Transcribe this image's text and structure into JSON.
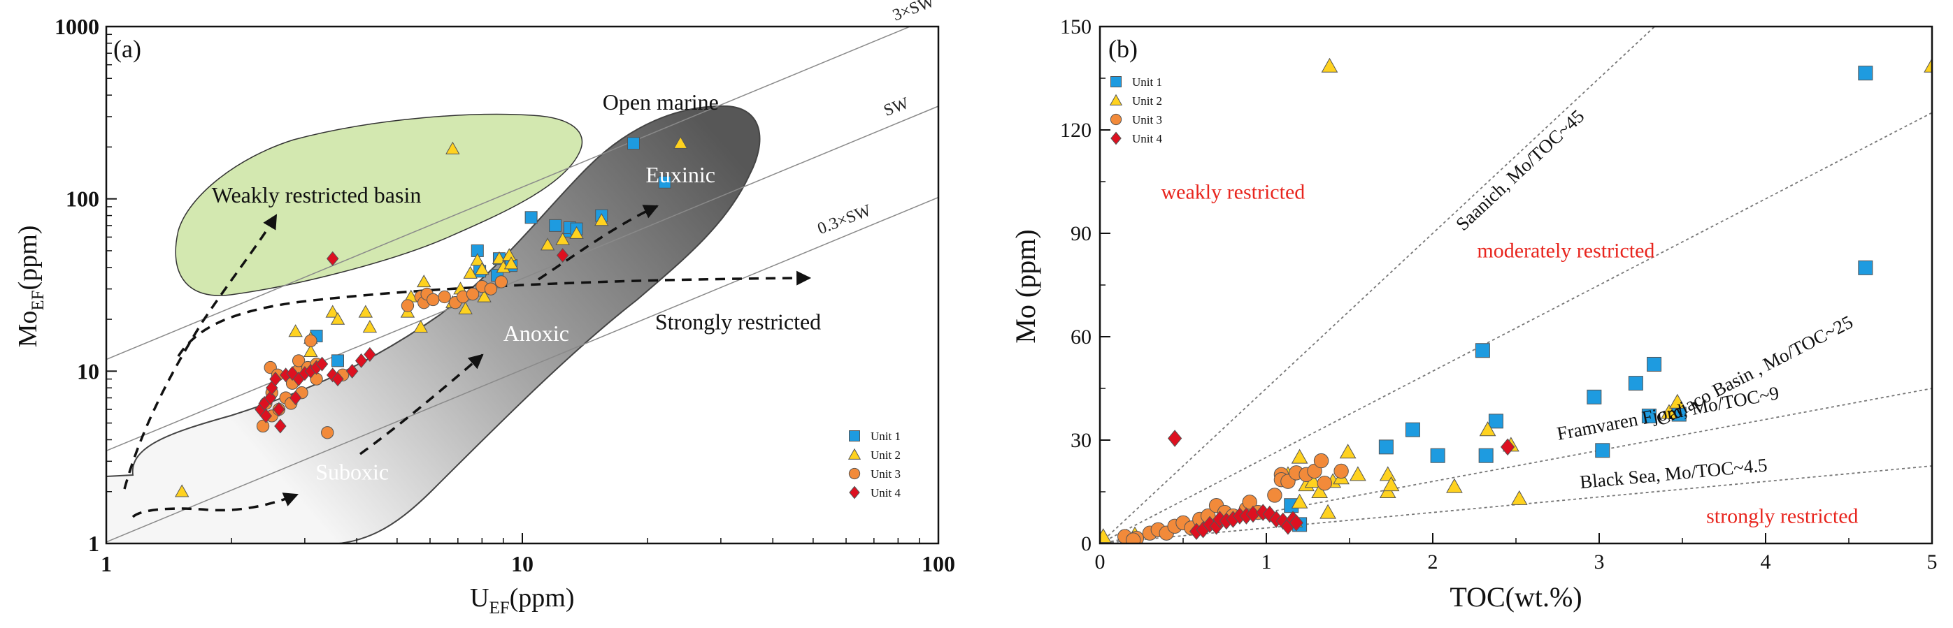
{
  "colors": {
    "unit1": "#1e9be0",
    "unit2": "#ffd21f",
    "unit3": "#f28a3a",
    "unit4": "#dd1020",
    "red_text": "#e8251e",
    "weak_basin_fill": "#d3e8b0",
    "anoxic_dark": "#5a5a5a",
    "anoxic_light": "#f2f2f2"
  },
  "chart_data": [
    {
      "id": "a",
      "type": "scatter",
      "panel_label": "(a)",
      "x_scale": "log",
      "y_scale": "log",
      "xlim": [
        1,
        100
      ],
      "ylim": [
        1,
        1000
      ],
      "xlabel_main": "U",
      "xlabel_sub": "EF",
      "xlabel_unit": "(ppm)",
      "ylabel_main": "Mo",
      "ylabel_sub": "EF",
      "ylabel_unit": "(ppm)",
      "xticks": [
        {
          "value": 1,
          "label": "1"
        },
        {
          "value": 10,
          "label": "10"
        },
        {
          "value": 100,
          "label": "100"
        }
      ],
      "yticks": [
        {
          "value": 1,
          "label": "1"
        },
        {
          "value": 10,
          "label": "10"
        },
        {
          "value": 100,
          "label": "100"
        },
        {
          "value": 1000,
          "label": "1000"
        }
      ],
      "reference_lines": [
        {
          "label": "3×SW",
          "factor": 11.7
        },
        {
          "label": "SW",
          "factor": 3.45
        },
        {
          "label": "0.3×SW",
          "factor": 1.02
        }
      ],
      "region_labels": [
        {
          "text": "Open marine",
          "x": 21.5,
          "y": 330,
          "color": "#111111"
        },
        {
          "text": "Euxinic",
          "x": 24,
          "y": 125,
          "color": "#ffffff"
        },
        {
          "text": "Weakly restricted basin",
          "x": 3.2,
          "y": 95,
          "color": "#111111"
        },
        {
          "text": "Strongly restricted",
          "x": 33,
          "y": 17.5,
          "color": "#111111"
        },
        {
          "text": "Anoxic",
          "x": 10.8,
          "y": 15,
          "color": "#ffffff"
        },
        {
          "text": "Suboxic",
          "x": 3.9,
          "y": 2.35,
          "color": "#ffffff"
        }
      ],
      "legend_position": "lower-right",
      "series": [
        {
          "name": "Unit 1",
          "marker": "square",
          "points": [
            [
              3.6,
              11.5
            ],
            [
              3.2,
              16
            ],
            [
              7.8,
              50
            ],
            [
              7.9,
              38
            ],
            [
              8.7,
              36
            ],
            [
              8.8,
              45
            ],
            [
              9.4,
              41
            ],
            [
              10.5,
              78
            ],
            [
              12,
              70
            ],
            [
              13,
              65
            ],
            [
              13,
              68
            ],
            [
              13.5,
              67
            ],
            [
              15.5,
              80
            ],
            [
              18.5,
              210
            ],
            [
              22,
              125
            ]
          ]
        },
        {
          "name": "Unit 2",
          "marker": "triangle",
          "points": [
            [
              1.52,
              2
            ],
            [
              2.85,
              17
            ],
            [
              3.1,
              13
            ],
            [
              3.1,
              15.5
            ],
            [
              3.5,
              22
            ],
            [
              3.6,
              20
            ],
            [
              4.2,
              22
            ],
            [
              4.3,
              18
            ],
            [
              5.3,
              22
            ],
            [
              5.4,
              27
            ],
            [
              5.7,
              18
            ],
            [
              5.8,
              33
            ],
            [
              6.8,
              25
            ],
            [
              7.1,
              30
            ],
            [
              7.3,
              23
            ],
            [
              7.5,
              37
            ],
            [
              7.8,
              44
            ],
            [
              8,
              39
            ],
            [
              8.1,
              27
            ],
            [
              8.8,
              45
            ],
            [
              9,
              40
            ],
            [
              9.3,
              47
            ],
            [
              9.4,
              42
            ],
            [
              11.5,
              54
            ],
            [
              12.5,
              58
            ],
            [
              13.5,
              63
            ],
            [
              15.5,
              75
            ],
            [
              24,
              210
            ],
            [
              6.8,
              195
            ]
          ]
        },
        {
          "name": "Unit 3",
          "marker": "circle",
          "points": [
            [
              2.38,
              4.8
            ],
            [
              2.42,
              6.5
            ],
            [
              2.48,
              10.5
            ],
            [
              2.5,
              7.5
            ],
            [
              2.5,
              5.5
            ],
            [
              2.58,
              9.5
            ],
            [
              2.6,
              6
            ],
            [
              2.7,
              7
            ],
            [
              2.78,
              6.5
            ],
            [
              2.8,
              8.5
            ],
            [
              2.88,
              10
            ],
            [
              2.9,
              11.5
            ],
            [
              2.95,
              7.5
            ],
            [
              3.05,
              10.5
            ],
            [
              3.2,
              11
            ],
            [
              3.2,
              9
            ],
            [
              3.4,
              4.4
            ],
            [
              3.7,
              9.5
            ],
            [
              5.3,
              24
            ],
            [
              5.7,
              27
            ],
            [
              5.8,
              25
            ],
            [
              5.9,
              28
            ],
            [
              6.1,
              26
            ],
            [
              6.5,
              27
            ],
            [
              6.9,
              25
            ],
            [
              7.2,
              27
            ],
            [
              7.6,
              28
            ],
            [
              8,
              31
            ],
            [
              8.4,
              30
            ],
            [
              8.9,
              33
            ],
            [
              3.1,
              15
            ]
          ]
        },
        {
          "name": "Unit 4",
          "marker": "diamond",
          "points": [
            [
              2.35,
              6
            ],
            [
              2.4,
              6.5
            ],
            [
              2.42,
              5.5
            ],
            [
              2.48,
              7
            ],
            [
              2.5,
              8
            ],
            [
              2.55,
              9
            ],
            [
              2.6,
              6
            ],
            [
              2.62,
              4.8
            ],
            [
              2.7,
              9.5
            ],
            [
              2.8,
              9.7
            ],
            [
              2.85,
              7
            ],
            [
              2.9,
              9
            ],
            [
              3,
              9.7
            ],
            [
              3.1,
              10
            ],
            [
              3.2,
              10.5
            ],
            [
              3.3,
              11
            ],
            [
              3.5,
              9.5
            ],
            [
              3.6,
              9
            ],
            [
              3.9,
              10
            ],
            [
              4.1,
              11.5
            ],
            [
              4.3,
              12.5
            ],
            [
              3.5,
              45
            ],
            [
              12.5,
              47
            ]
          ]
        }
      ]
    },
    {
      "id": "b",
      "type": "scatter",
      "panel_label": "(b)",
      "xlim": [
        0,
        5
      ],
      "ylim": [
        0,
        150
      ],
      "xlabel": "TOC(wt.%)",
      "ylabel": "Mo (ppm)",
      "xticks": [
        {
          "value": 0,
          "label": "0"
        },
        {
          "value": 1,
          "label": "1"
        },
        {
          "value": 2,
          "label": "2"
        },
        {
          "value": 3,
          "label": "3"
        },
        {
          "value": 4,
          "label": "4"
        },
        {
          "value": 5,
          "label": "5"
        }
      ],
      "yticks": [
        {
          "value": 0,
          "label": "0"
        },
        {
          "value": 30,
          "label": "30"
        },
        {
          "value": 60,
          "label": "60"
        },
        {
          "value": 90,
          "label": "90"
        },
        {
          "value": 120,
          "label": "120"
        },
        {
          "value": 150,
          "label": "150"
        }
      ],
      "reference_lines": [
        {
          "label": "Saanich, Mo/TOC~45",
          "slope": 45,
          "label_x": 2.55,
          "label_y": 107
        },
        {
          "label": "Cariaco Basin , Mo/TOC~25",
          "slope": 25,
          "label_x": 3.95,
          "label_y": 48.5
        },
        {
          "label": "Framvaren Fjord, Mo/TOC~9",
          "slope": 9,
          "label_x": 3.42,
          "label_y": 36
        },
        {
          "label": "Black Sea, Mo/TOC~4.5",
          "slope": 4.5,
          "label_x": 3.45,
          "label_y": 18.5
        }
      ],
      "region_labels": [
        {
          "text": "weakly restricted",
          "x": 0.8,
          "y": 100
        },
        {
          "text": "moderately restricted",
          "x": 2.8,
          "y": 83
        },
        {
          "text": "strongly restricted",
          "x": 4.1,
          "y": 6
        }
      ],
      "legend_position": "top-left",
      "series": [
        {
          "name": "Unit 1",
          "marker": "square",
          "points": [
            [
              1.15,
              11
            ],
            [
              1.2,
              5.5
            ],
            [
              1.72,
              28
            ],
            [
              1.88,
              33
            ],
            [
              2.03,
              25.5
            ],
            [
              2.3,
              56
            ],
            [
              2.32,
              25.5
            ],
            [
              2.38,
              35.5
            ],
            [
              2.97,
              42.5
            ],
            [
              3.02,
              27
            ],
            [
              3.22,
              46.5
            ],
            [
              3.3,
              37
            ],
            [
              3.33,
              52
            ],
            [
              3.48,
              37.5
            ],
            [
              4.6,
              80
            ],
            [
              4.6,
              136.5
            ]
          ]
        },
        {
          "name": "Unit 2",
          "marker": "triangle",
          "points": [
            [
              0.02,
              2
            ],
            [
              0.21,
              2.5
            ],
            [
              0.98,
              9
            ],
            [
              1.13,
              20
            ],
            [
              1.17,
              6.5
            ],
            [
              1.2,
              12
            ],
            [
              1.2,
              25
            ],
            [
              1.24,
              17
            ],
            [
              1.28,
              18
            ],
            [
              1.32,
              15
            ],
            [
              1.37,
              9
            ],
            [
              1.4,
              18
            ],
            [
              1.45,
              19
            ],
            [
              1.49,
              26.5
            ],
            [
              1.55,
              20
            ],
            [
              1.73,
              20
            ],
            [
              1.73,
              15
            ],
            [
              1.75,
              17
            ],
            [
              2.13,
              16.5
            ],
            [
              2.33,
              33
            ],
            [
              2.47,
              28.5
            ],
            [
              2.52,
              13
            ],
            [
              3.42,
              38
            ],
            [
              3.47,
              41
            ],
            [
              1.38,
              138.5
            ],
            [
              5,
              138.5
            ]
          ]
        },
        {
          "name": "Unit 3",
          "marker": "circle",
          "points": [
            [
              0.15,
              2
            ],
            [
              0.22,
              1.5
            ],
            [
              0.3,
              3
            ],
            [
              0.35,
              4
            ],
            [
              0.4,
              3
            ],
            [
              0.45,
              5
            ],
            [
              0.5,
              6
            ],
            [
              0.55,
              4.5
            ],
            [
              0.6,
              7
            ],
            [
              0.65,
              8
            ],
            [
              0.7,
              11
            ],
            [
              0.75,
              9
            ],
            [
              0.8,
              8
            ],
            [
              0.88,
              10
            ],
            [
              0.9,
              12
            ],
            [
              0.95,
              9
            ],
            [
              1.05,
              14
            ],
            [
              1.09,
              20
            ],
            [
              1.09,
              18.5
            ],
            [
              1.13,
              18
            ],
            [
              1.18,
              20.5
            ],
            [
              1.24,
              20
            ],
            [
              1.29,
              21
            ],
            [
              1.33,
              24
            ],
            [
              1.35,
              17.5
            ],
            [
              1.45,
              21
            ],
            [
              0.2,
              1
            ]
          ]
        },
        {
          "name": "Unit 4",
          "marker": "diamond",
          "points": [
            [
              0.45,
              30.5
            ],
            [
              0.58,
              3.5
            ],
            [
              0.62,
              4
            ],
            [
              0.66,
              5.5
            ],
            [
              0.7,
              5
            ],
            [
              0.72,
              7
            ],
            [
              0.76,
              6.5
            ],
            [
              0.8,
              7
            ],
            [
              0.84,
              8
            ],
            [
              0.88,
              8
            ],
            [
              0.92,
              8.5
            ],
            [
              0.98,
              9
            ],
            [
              1.02,
              8.5
            ],
            [
              1.06,
              7
            ],
            [
              1.1,
              6.5
            ],
            [
              1.13,
              5
            ],
            [
              1.16,
              7
            ],
            [
              1.18,
              6
            ],
            [
              2.45,
              28
            ]
          ]
        }
      ]
    }
  ]
}
